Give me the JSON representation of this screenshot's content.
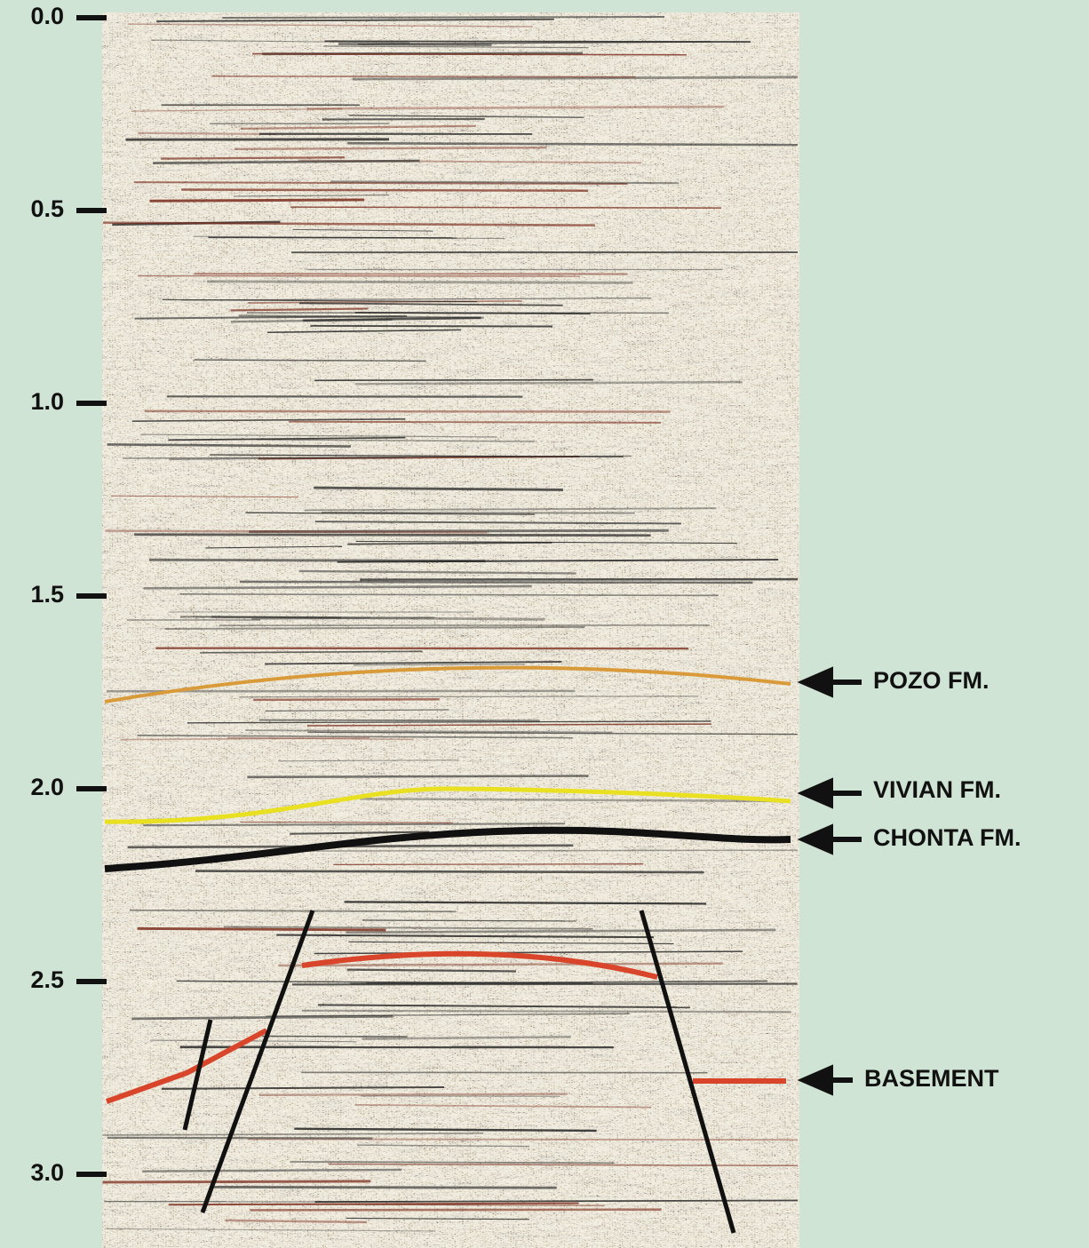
{
  "axis": {
    "ticks": [
      {
        "value": 0,
        "label": "0.0"
      },
      {
        "value": 0.5,
        "label": "0.5"
      },
      {
        "value": 1,
        "label": "1.0"
      },
      {
        "value": 1.5,
        "label": "1.5"
      },
      {
        "value": 2,
        "label": "2.0"
      },
      {
        "value": 2.5,
        "label": "2.5"
      },
      {
        "value": 3,
        "label": "3.0"
      }
    ]
  },
  "annotations": [
    "POZO FM.",
    "VIVIAN FM.",
    "CHONTA FM.",
    "BASEMENT"
  ]
}
